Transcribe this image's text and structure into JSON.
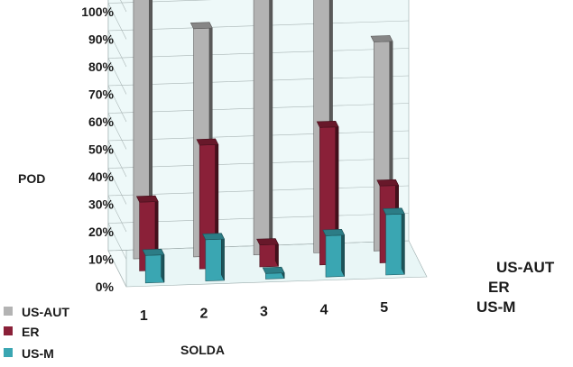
{
  "chart_data": {
    "type": "bar",
    "title": "",
    "xlabel": "SOLDA",
    "ylabel": "POD",
    "ylim": [
      0,
      100
    ],
    "yticks": [
      0,
      10,
      20,
      30,
      40,
      50,
      60,
      70,
      80,
      90,
      100
    ],
    "ytick_suffix": "%",
    "categories": [
      "1",
      "2",
      "3",
      "4",
      "5"
    ],
    "depth_labels": [
      "US-AUT",
      "ER",
      "US-M"
    ],
    "series": [
      {
        "name": "US-AUT",
        "values": [
          100,
          83,
          95,
          93,
          76
        ],
        "color": "#b3b3b3"
      },
      {
        "name": "ER",
        "values": [
          25,
          45,
          8,
          50,
          28
        ],
        "color": "#8a2038"
      },
      {
        "name": "US-M",
        "values": [
          10,
          15,
          2,
          15,
          22
        ],
        "color": "#3aa6b2"
      }
    ],
    "legend_position": "bottom-left",
    "grid": true
  }
}
